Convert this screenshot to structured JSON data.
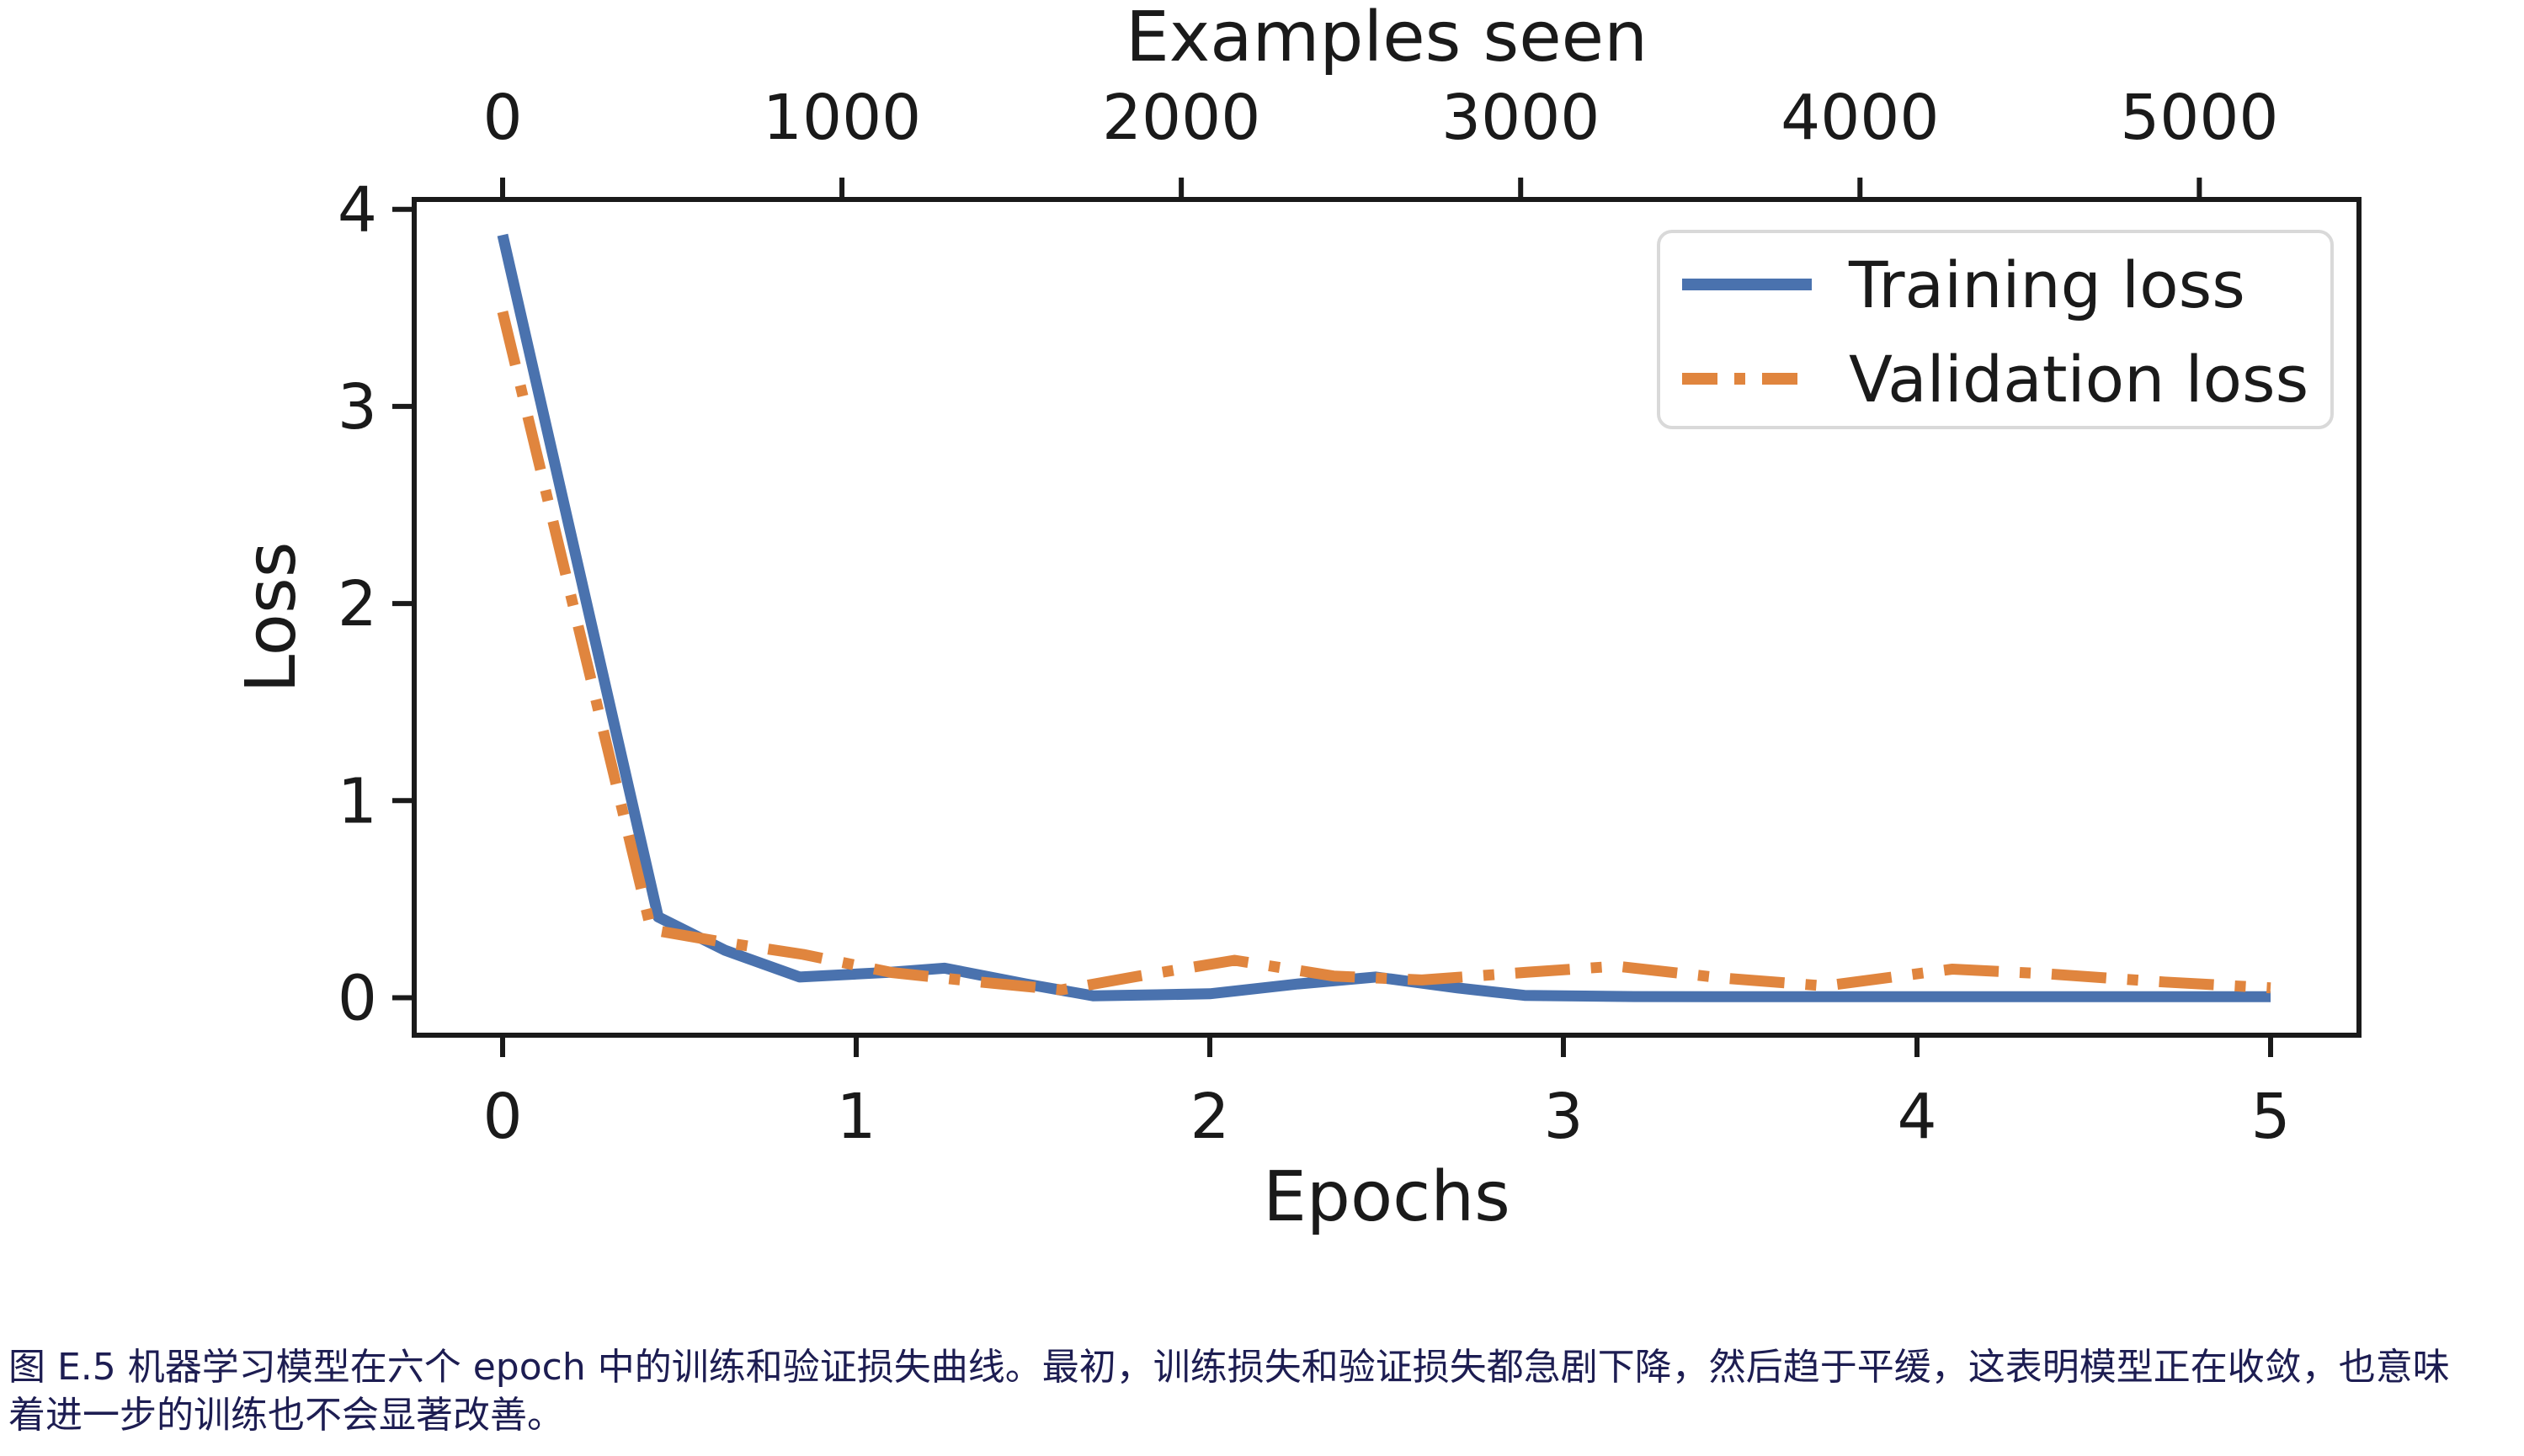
{
  "chart_data": {
    "type": "line",
    "top_axis": {
      "title": "Examples seen",
      "ticks": [
        0,
        1000,
        2000,
        3000,
        4000,
        5000
      ],
      "examples_per_epoch": 1042
    },
    "xlabel": "Epochs",
    "ylabel": "Loss",
    "x_ticks": [
      0,
      1,
      2,
      3,
      4,
      5
    ],
    "y_ticks": [
      0,
      1,
      2,
      3,
      4
    ],
    "xlim": [
      -0.25,
      5.25
    ],
    "ylim": [
      -0.19,
      4.05
    ],
    "grid": false,
    "legend_position": "upper right",
    "series": [
      {
        "name": "Training loss",
        "color": "#4a72ae",
        "line_style": "solid",
        "points": [
          [
            0.0,
            3.87
          ],
          [
            0.44,
            0.41
          ],
          [
            0.63,
            0.24
          ],
          [
            0.84,
            0.105
          ],
          [
            1.1,
            0.13
          ],
          [
            1.25,
            0.15
          ],
          [
            1.48,
            0.07
          ],
          [
            1.67,
            0.01
          ],
          [
            1.85,
            0.015
          ],
          [
            2.0,
            0.02
          ],
          [
            2.25,
            0.07
          ],
          [
            2.47,
            0.105
          ],
          [
            2.7,
            0.05
          ],
          [
            2.89,
            0.012
          ],
          [
            3.2,
            0.006
          ],
          [
            3.6,
            0.005
          ],
          [
            4.0,
            0.005
          ],
          [
            4.4,
            0.005
          ],
          [
            4.7,
            0.005
          ],
          [
            5.0,
            0.005
          ]
        ]
      },
      {
        "name": "Validation loss",
        "color": "#e0853e",
        "line_style": "dashdot",
        "points": [
          [
            0.0,
            3.48
          ],
          [
            0.42,
            0.345
          ],
          [
            0.63,
            0.28
          ],
          [
            0.85,
            0.22
          ],
          [
            1.1,
            0.128
          ],
          [
            1.35,
            0.08
          ],
          [
            1.58,
            0.04
          ],
          [
            1.8,
            0.11
          ],
          [
            2.07,
            0.19
          ],
          [
            2.35,
            0.11
          ],
          [
            2.6,
            0.09
          ],
          [
            2.9,
            0.13
          ],
          [
            3.15,
            0.16
          ],
          [
            3.45,
            0.1
          ],
          [
            3.74,
            0.06
          ],
          [
            4.1,
            0.145
          ],
          [
            4.38,
            0.12
          ],
          [
            4.7,
            0.08
          ],
          [
            5.0,
            0.05
          ]
        ]
      }
    ],
    "style": {
      "axis_color": "#1a1a1a",
      "text_color": "#1a1a1a",
      "legend_border_color": "#d9d9d9",
      "legend_background": "#ffffff"
    }
  },
  "caption": {
    "line1": "图 E.5 机器学习模型在六个 epoch 中的训练和验证损失曲线。最初，训练损失和验证损失都急剧下降，然后趋于平缓，这表明模型正在收敛，也意味",
    "line2": "着进一步的训练也不会显著改善。",
    "color": "#1d1d52"
  }
}
